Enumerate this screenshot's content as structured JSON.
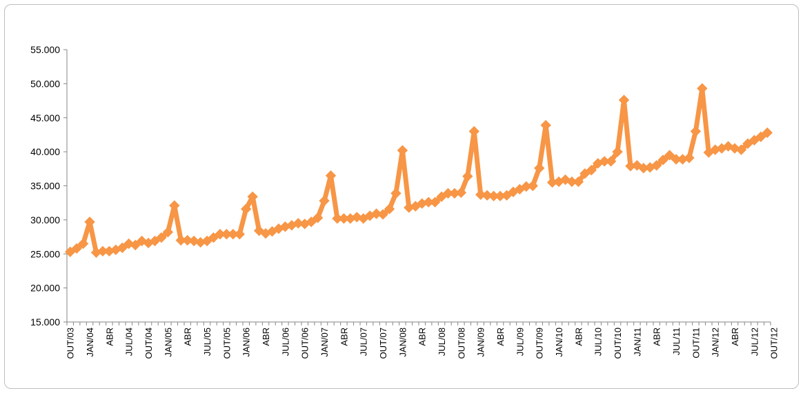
{
  "chart_data": {
    "type": "line",
    "title": "",
    "xlabel": "",
    "ylabel": "",
    "ylim": [
      15000,
      55000
    ],
    "yticks": [
      "15.000",
      "20.000",
      "25.000",
      "30.000",
      "35.000",
      "40.000",
      "45.000",
      "50.000",
      "55.000"
    ],
    "ytick_values": [
      15000,
      20000,
      25000,
      30000,
      35000,
      40000,
      45000,
      50000,
      55000
    ],
    "xtick_labels": [
      "OUT/03",
      "JAN/04",
      "ABR",
      "JUL/04",
      "OUT/04",
      "JAN/05",
      "ABR",
      "JUL/05",
      "OUT/05",
      "JAN/06",
      "ABR",
      "JUL/06",
      "OUT/06",
      "JAN/07",
      "ABR",
      "JUL/07",
      "OUT/07",
      "JAN/08",
      "ABR",
      "JUL/08",
      "OUT/08",
      "JAN/09",
      "ABR",
      "JUL/09",
      "OUT/09",
      "JAN/10",
      "ABR",
      "JUL/10",
      "OUT/10",
      "JAN/11",
      "ABR",
      "JUL/11",
      "OUT/11",
      "JAN/12",
      "ABR",
      "JUL/12",
      "OUT/12"
    ],
    "color": "#F79646",
    "grid": false,
    "legend": "none",
    "series": [
      {
        "values": [
          25300,
          25800,
          26500,
          29700,
          25200,
          25400,
          25400,
          25600,
          25900,
          26500,
          26300,
          26900,
          26600,
          26900,
          27400,
          28200,
          32100,
          27000,
          27000,
          26900,
          26700,
          26900,
          27400,
          27900,
          27900,
          27900,
          27900,
          31600,
          33400,
          28400,
          28000,
          28300,
          28700,
          29000,
          29200,
          29500,
          29400,
          29700,
          30300,
          32800,
          36500,
          30200,
          30200,
          30200,
          30400,
          30200,
          30600,
          30900,
          30800,
          31600,
          33900,
          40200,
          31800,
          32000,
          32400,
          32600,
          32600,
          33400,
          33900,
          33900,
          34000,
          36400,
          43000,
          33700,
          33600,
          33500,
          33500,
          33600,
          34100,
          34500,
          34900,
          35000,
          37600,
          43900,
          35500,
          35600,
          35900,
          35600,
          35600,
          36800,
          37300,
          38300,
          38600,
          38600,
          40000,
          47600,
          37900,
          38000,
          37600,
          37700,
          38000,
          38800,
          39500,
          38900,
          38900,
          39100,
          43000,
          49300,
          39900,
          40300,
          40500,
          40800,
          40500,
          40300,
          41200,
          41700,
          42200,
          42800
        ]
      }
    ]
  }
}
